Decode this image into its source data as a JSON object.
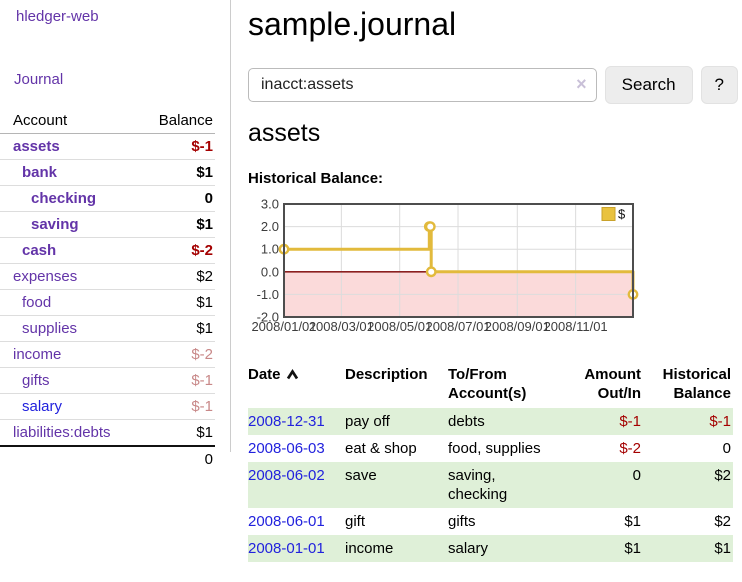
{
  "app": {
    "name": "hledger-web"
  },
  "colors": {
    "link_purple": "#6334a8",
    "link_blue": "#2222dd",
    "negative": "#a40000",
    "negative_dim": "#c88888",
    "row_highlight_green": "#dff0d8",
    "chart_line_gold": "#e2ba3c",
    "chart_negative_region": "#fbdada",
    "chart_zero_line": "#8b2020"
  },
  "sidebar": {
    "journal_link": "Journal",
    "headers": {
      "account": "Account",
      "balance": "Balance"
    },
    "accounts": [
      {
        "name": "assets",
        "balance": "$-1",
        "depth": 1,
        "bold": true
      },
      {
        "name": "bank",
        "balance": "$1",
        "depth": 2,
        "bold": true
      },
      {
        "name": "checking",
        "balance": "0",
        "depth": 3,
        "bold": true
      },
      {
        "name": "saving",
        "balance": "$1",
        "depth": 3,
        "bold": true
      },
      {
        "name": "cash",
        "balance": "$-2",
        "depth": 2,
        "bold": true
      },
      {
        "name": "expenses",
        "balance": "$2",
        "depth": 1,
        "bold": false
      },
      {
        "name": "food",
        "balance": "$1",
        "depth": 2,
        "bold": false
      },
      {
        "name": "supplies",
        "balance": "$1",
        "depth": 2,
        "bold": false
      },
      {
        "name": "income",
        "balance": "$-2",
        "depth": 1,
        "bold": false
      },
      {
        "name": "gifts",
        "balance": "$-1",
        "depth": 2,
        "bold": false
      },
      {
        "name": "salary",
        "balance": "$-1",
        "depth": 2,
        "bold": false,
        "blue": true
      },
      {
        "name": "liabilities:debts",
        "balance": "$1",
        "depth": 1,
        "bold": false
      }
    ],
    "total_balance": "0"
  },
  "main": {
    "title": "sample.journal",
    "search": {
      "value": "inacct:assets",
      "clear_icon": "×",
      "button": "Search",
      "help_button": "?"
    },
    "account_heading": "assets",
    "chart_label": "Historical Balance:"
  },
  "chart_data": {
    "type": "line",
    "title": "Historical Balance:",
    "steps": true,
    "series": [
      {
        "name": "$",
        "points": [
          [
            "2008-01-01",
            1
          ],
          [
            "2008-06-01",
            2
          ],
          [
            "2008-06-02",
            2
          ],
          [
            "2008-06-03",
            0
          ],
          [
            "2008-12-31",
            -1
          ]
        ]
      }
    ],
    "xlim": [
      "2008-01-01",
      "2008-12-31"
    ],
    "ylim": [
      -2,
      3
    ],
    "x_tick_labels": [
      "2008/01/01",
      "2008/03/01",
      "2008/05/01",
      "2008/07/01",
      "2008/09/01",
      "2008/11/01"
    ],
    "y_tick_labels": [
      "3.0",
      "2.0",
      "1.0",
      "0.0",
      "-1.0",
      "-2.0"
    ],
    "y_ticks": [
      3,
      2,
      1,
      0,
      -1,
      -2
    ],
    "legend": {
      "label": "$",
      "position": "top-right"
    },
    "grid": true,
    "negative_region_shaded": true
  },
  "register": {
    "headers": [
      {
        "lines": [
          "Date"
        ],
        "align": "left",
        "sorted": "ascending"
      },
      {
        "lines": [
          "Description"
        ],
        "align": "left"
      },
      {
        "lines": [
          "To/From",
          "Account(s)"
        ],
        "align": "left"
      },
      {
        "lines": [
          "Amount",
          "Out/In"
        ],
        "align": "right"
      },
      {
        "lines": [
          "Historical",
          "Balance"
        ],
        "align": "right"
      }
    ],
    "rows": [
      {
        "date": "2008-12-31",
        "description": "pay off",
        "accounts": "debts",
        "amount": "$-1",
        "balance": "$-1"
      },
      {
        "date": "2008-06-03",
        "description": "eat & shop",
        "accounts": "food, supplies",
        "amount": "$-2",
        "balance": "0"
      },
      {
        "date": "2008-06-02",
        "description": "save",
        "accounts": "saving, checking",
        "amount": "0",
        "balance": "$2"
      },
      {
        "date": "2008-06-01",
        "description": "gift",
        "accounts": "gifts",
        "amount": "$1",
        "balance": "$2"
      },
      {
        "date": "2008-01-01",
        "description": "income",
        "accounts": "salary",
        "amount": "$1",
        "balance": "$1"
      }
    ]
  }
}
